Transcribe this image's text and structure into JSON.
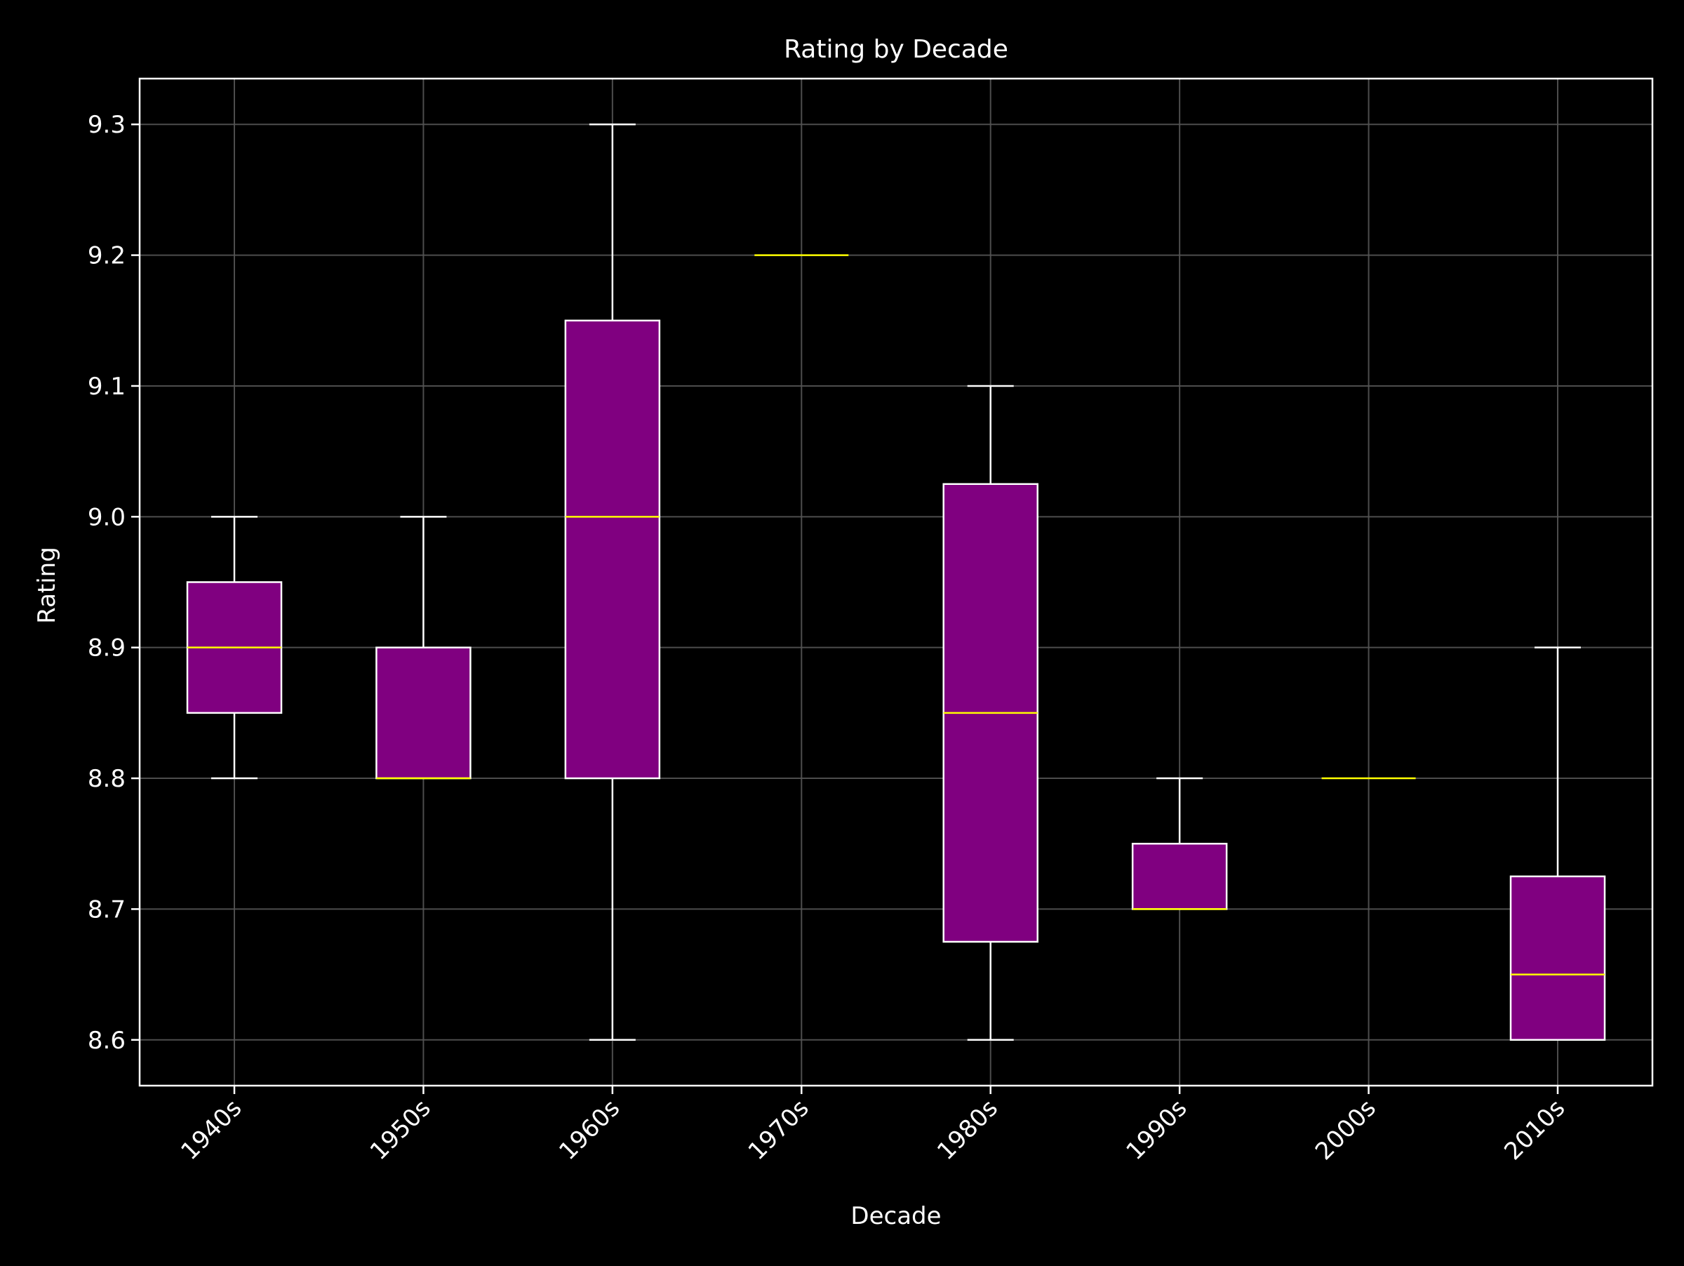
{
  "chart_data": {
    "type": "box",
    "title": "Rating by Decade",
    "xlabel": "Decade",
    "ylabel": "Rating",
    "categories": [
      "1940s",
      "1950s",
      "1960s",
      "1970s",
      "1980s",
      "1990s",
      "2000s",
      "2010s"
    ],
    "boxes": [
      {
        "category": "1940s",
        "whisker_low": 8.8,
        "q1": 8.85,
        "median": 8.9,
        "q3": 8.95,
        "whisker_high": 9.0
      },
      {
        "category": "1950s",
        "whisker_low": 8.8,
        "q1": 8.8,
        "median": 8.8,
        "q3": 8.9,
        "whisker_high": 9.0
      },
      {
        "category": "1960s",
        "whisker_low": 8.6,
        "q1": 8.8,
        "median": 9.0,
        "q3": 9.15,
        "whisker_high": 9.3
      },
      {
        "category": "1970s",
        "whisker_low": 9.2,
        "q1": 9.2,
        "median": 9.2,
        "q3": 9.2,
        "whisker_high": 9.2
      },
      {
        "category": "1980s",
        "whisker_low": 8.6,
        "q1": 8.675,
        "median": 8.85,
        "q3": 9.025,
        "whisker_high": 9.1
      },
      {
        "category": "1990s",
        "whisker_low": 8.7,
        "q1": 8.7,
        "median": 8.7,
        "q3": 8.75,
        "whisker_high": 8.8
      },
      {
        "category": "2000s",
        "whisker_low": 8.8,
        "q1": 8.8,
        "median": 8.8,
        "q3": 8.8,
        "whisker_high": 8.8
      },
      {
        "category": "2010s",
        "whisker_low": 8.6,
        "q1": 8.6,
        "median": 8.65,
        "q3": 8.725,
        "whisker_high": 8.9
      }
    ],
    "yticks": [
      "8.6",
      "8.7",
      "8.8",
      "8.9",
      "9.0",
      "9.1",
      "9.2",
      "9.3"
    ],
    "ylim": [
      8.565,
      9.335
    ],
    "grid": true,
    "colors": {
      "background": "#000000",
      "box_fill": "#800080",
      "box_edge": "#ffffff",
      "median": "#ffff00",
      "whisker": "#ffffff",
      "grid": "#555555",
      "text": "#ffffff"
    }
  }
}
